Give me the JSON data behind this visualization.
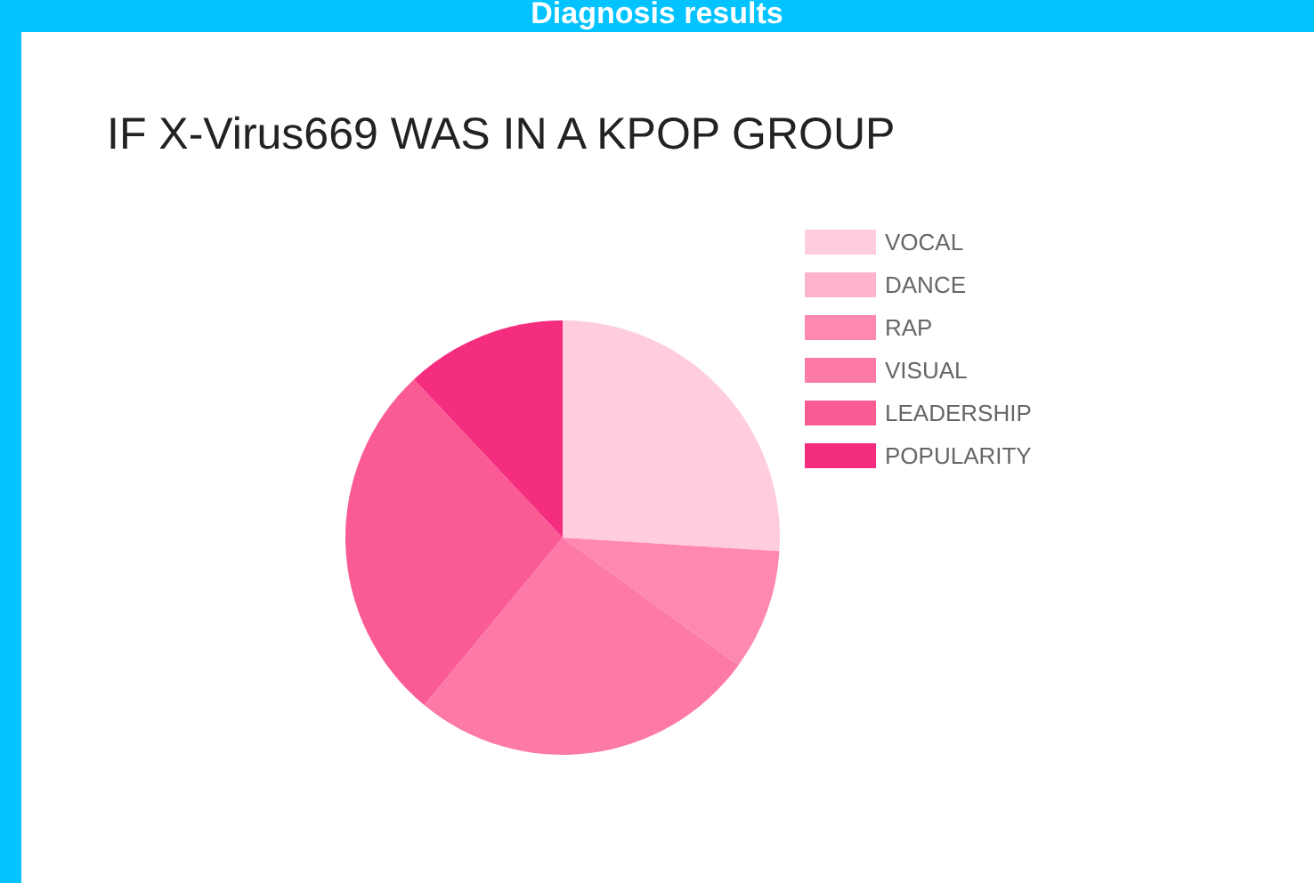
{
  "chart_data": {
    "type": "pie",
    "title": "IF X-Virus669 WAS IN A KPOP GROUP",
    "annotations": [
      "Diagnosis results"
    ],
    "categories": [
      "VOCAL",
      "DANCE",
      "RAP",
      "VISUAL",
      "LEADERSHIP",
      "POPULARITY"
    ],
    "values": [
      26,
      0,
      9,
      26,
      27,
      12
    ],
    "colors": [
      "#ffcce0",
      "#ffb3cf",
      "#ff88b0",
      "#fc79a8",
      "#fa5b94",
      "#f42d7f"
    ],
    "legend": "top right"
  }
}
